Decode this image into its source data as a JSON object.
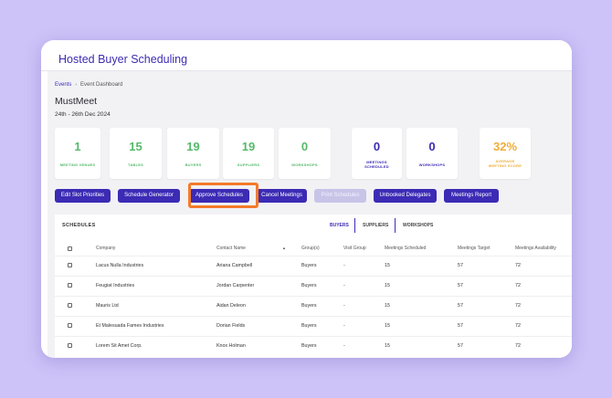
{
  "app": {
    "title": "Hosted Buyer Scheduling"
  },
  "breadcrumb": {
    "link": "Events",
    "separator": "›",
    "current": "Event Dashboard"
  },
  "event": {
    "name": "MustMeet",
    "dates": "24th - 26th Dec 2024"
  },
  "stats": [
    {
      "value": "1",
      "label": "MEETING VENUES",
      "color": "#55b96a"
    },
    {
      "value": "15",
      "label": "TABLES",
      "color": "#55b96a"
    },
    {
      "value": "19",
      "label": "BUYERS",
      "color": "#55b96a"
    },
    {
      "value": "19",
      "label": "SUPPLIERS",
      "color": "#55b96a"
    },
    {
      "value": "0",
      "label": "WORKSHOPS",
      "color": "#55b96a"
    },
    {
      "value": "0",
      "label": "MEETINGS SCHEDULED",
      "color": "#3b2bb5"
    },
    {
      "value": "0",
      "label": "WORKSHOPS",
      "color": "#3b2bb5"
    },
    {
      "value": "32%",
      "label": "AVERAGE MEETING SCORE",
      "color": "#f0ad38"
    }
  ],
  "actions": [
    {
      "label": "Edit Slot Priorities",
      "disabled": false
    },
    {
      "label": "Schedule Generator",
      "disabled": false
    },
    {
      "label": "Approve Schedules",
      "disabled": false,
      "highlighted": true
    },
    {
      "label": "Cancel Meetings",
      "disabled": false
    },
    {
      "label": "Print Schedules",
      "disabled": true
    },
    {
      "label": "Unbooked Delegates",
      "disabled": false
    },
    {
      "label": "Meetings Report",
      "disabled": false
    }
  ],
  "schedules": {
    "title": "SCHEDULES",
    "tabs": [
      {
        "label": "BUYERS",
        "active": true
      },
      {
        "label": "SUPPLIERS",
        "active": false
      },
      {
        "label": "WORKSHOPS",
        "active": false
      }
    ],
    "columns": [
      "Company",
      "Contact Name",
      "Group(s)",
      "Visit Group",
      "Meetings Scheduled",
      "Meetings Target",
      "Meetings Availability"
    ],
    "sort_indicator": "▲",
    "rows": [
      [
        "Lacus Nulla Industries",
        "Ariana Campbell",
        "Buyers",
        "-",
        "15",
        "57",
        "72"
      ],
      [
        "Feugiat Industries",
        "Jordan Carpenter",
        "Buyers",
        "-",
        "15",
        "57",
        "72"
      ],
      [
        "Mauris Ltd",
        "Aidan Deleon",
        "Buyers",
        "-",
        "15",
        "57",
        "72"
      ],
      [
        "Et Malesuada Fames Industries",
        "Dorian Fields",
        "Buyers",
        "-",
        "15",
        "57",
        "72"
      ],
      [
        "Lorem Sit Amet Corp.",
        "Knox Holman",
        "Buyers",
        "-",
        "15",
        "57",
        "72"
      ]
    ]
  },
  "colors": {
    "primary": "#3b2bb5",
    "highlight": "#f47a2a",
    "background": "#cdc3f8"
  }
}
